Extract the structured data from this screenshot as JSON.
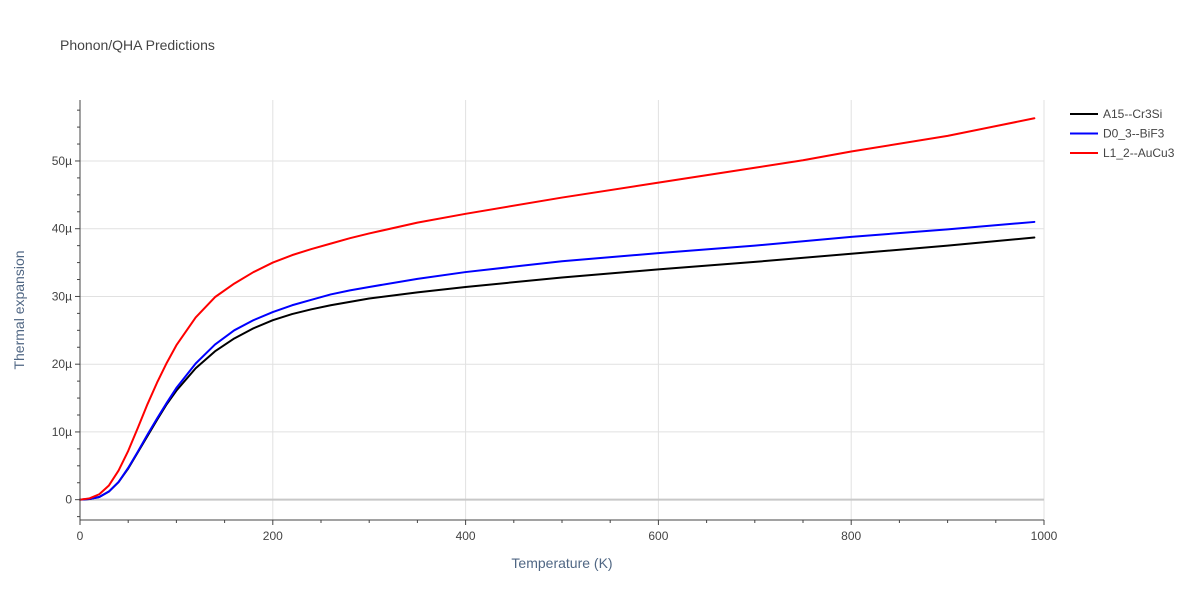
{
  "chart_data": {
    "type": "line",
    "title": "Phonon/QHA Predictions",
    "xlabel": "Temperature (K)",
    "ylabel": "Thermal expansion",
    "xlim": [
      0,
      1000
    ],
    "ylim": [
      -3,
      59
    ],
    "xticks": [
      0,
      200,
      400,
      600,
      800,
      1000
    ],
    "xtick_labels": [
      "0",
      "200",
      "400",
      "600",
      "800",
      "1000"
    ],
    "yticks": [
      0,
      10,
      20,
      30,
      40,
      50
    ],
    "ytick_labels": [
      "0",
      "10µ",
      "20µ",
      "30µ",
      "40µ",
      "50µ"
    ],
    "y_unit_note": "µ (×1e-6)",
    "grid": true,
    "legend_position": "top-right",
    "series": [
      {
        "name": "A15--Cr3Si",
        "color": "#000000",
        "x": [
          0,
          10,
          20,
          30,
          40,
          50,
          60,
          70,
          80,
          90,
          100,
          120,
          140,
          160,
          180,
          200,
          220,
          240,
          260,
          280,
          300,
          350,
          400,
          500,
          600,
          700,
          800,
          900,
          990
        ],
        "y": [
          0,
          0.1,
          0.4,
          1.2,
          2.6,
          4.6,
          7.0,
          9.4,
          11.8,
          14.1,
          16.1,
          19.4,
          21.9,
          23.8,
          25.3,
          26.5,
          27.4,
          28.1,
          28.7,
          29.2,
          29.7,
          30.6,
          31.4,
          32.8,
          34.0,
          35.1,
          36.3,
          37.5,
          38.7
        ]
      },
      {
        "name": "D0_3--BiF3",
        "color": "#0000ff",
        "x": [
          0,
          10,
          20,
          30,
          40,
          50,
          60,
          70,
          80,
          90,
          100,
          120,
          140,
          160,
          180,
          200,
          220,
          240,
          260,
          280,
          300,
          350,
          400,
          500,
          600,
          700,
          800,
          900,
          990
        ],
        "y": [
          0,
          0.1,
          0.4,
          1.2,
          2.6,
          4.7,
          7.1,
          9.6,
          12.0,
          14.3,
          16.5,
          20.1,
          22.9,
          25.0,
          26.5,
          27.7,
          28.7,
          29.5,
          30.3,
          30.9,
          31.4,
          32.6,
          33.6,
          35.2,
          36.4,
          37.5,
          38.8,
          39.9,
          41.0
        ]
      },
      {
        "name": "L1_2--AuCu3",
        "color": "#ff0000",
        "x": [
          0,
          10,
          20,
          30,
          40,
          50,
          60,
          70,
          80,
          90,
          100,
          120,
          140,
          160,
          180,
          200,
          220,
          240,
          260,
          280,
          300,
          350,
          400,
          500,
          600,
          700,
          750,
          800,
          900,
          990
        ],
        "y": [
          0,
          0.2,
          0.8,
          2.1,
          4.3,
          7.2,
          10.6,
          14.1,
          17.3,
          20.2,
          22.8,
          26.9,
          29.9,
          31.9,
          33.6,
          35.0,
          36.1,
          37.0,
          37.8,
          38.6,
          39.3,
          40.9,
          42.2,
          44.6,
          46.8,
          49.0,
          50.1,
          51.4,
          53.7,
          56.3
        ]
      }
    ]
  }
}
